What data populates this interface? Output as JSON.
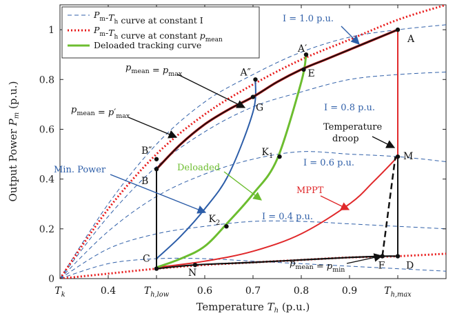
{
  "chart_data": {
    "type": "line",
    "xlabel": "Temperature T_h (p.u.)",
    "ylabel": "Output Power P_m (p.u.)",
    "xlim": [
      0.3,
      1.1
    ],
    "ylim": [
      0,
      1.1
    ],
    "xticks": [
      {
        "v": 0.3,
        "label": "T_k"
      },
      {
        "v": 0.4,
        "label": "0.4"
      },
      {
        "v": 0.5,
        "label": "T_h,low"
      },
      {
        "v": 0.6,
        "label": "0.6"
      },
      {
        "v": 0.7,
        "label": "0.7"
      },
      {
        "v": 0.8,
        "label": "0.8"
      },
      {
        "v": 0.9,
        "label": "0.9"
      },
      {
        "v": 1.0,
        "label": "T_h,max"
      }
    ],
    "yticks": [
      {
        "v": 0,
        "label": "0"
      },
      {
        "v": 0.2,
        "label": "0.2"
      },
      {
        "v": 0.4,
        "label": "0.4"
      },
      {
        "v": 0.6,
        "label": "0.6"
      },
      {
        "v": 0.8,
        "label": "0.8"
      },
      {
        "v": 1.0,
        "label": "1"
      }
    ],
    "legend": {
      "position": "top-left",
      "entries": [
        {
          "label": "P_m-T_h curve at constant I",
          "style": "blue-dashed"
        },
        {
          "label": "P_m-T_h curve at constant p_mean",
          "style": "red-dotted"
        },
        {
          "label": "Deloaded tracking curve",
          "style": "green-solid"
        }
      ]
    },
    "colors": {
      "const_current": "#2f5fa8",
      "const_pressure": "#e81818",
      "deloaded": "#6cbd2f",
      "mppt": "#e0282a",
      "min_power": "#2c5da8",
      "operating_boundary": "#111111"
    },
    "constant_current_curves": [
      {
        "label": "I = 1.0 p.u.",
        "x": [
          0.3,
          0.4,
          0.5,
          0.6,
          0.7,
          0.8,
          0.9,
          1.0,
          1.1
        ],
        "y": [
          0.0,
          0.3,
          0.54,
          0.71,
          0.82,
          0.91,
          0.97,
          1.0,
          1.02
        ]
      },
      {
        "label": "I = 0.8 p.u.",
        "x": [
          0.3,
          0.4,
          0.5,
          0.6,
          0.7,
          0.8,
          0.9,
          1.0,
          1.1
        ],
        "y": [
          0.0,
          0.25,
          0.45,
          0.59,
          0.69,
          0.75,
          0.8,
          0.82,
          0.83
        ]
      },
      {
        "label": "I = 0.6 p.u.",
        "x": [
          0.3,
          0.4,
          0.5,
          0.6,
          0.7,
          0.8,
          0.9,
          1.0,
          1.1
        ],
        "y": [
          0.0,
          0.19,
          0.33,
          0.42,
          0.48,
          0.51,
          0.5,
          0.49,
          0.47
        ]
      },
      {
        "label": "I = 0.4 p.u.",
        "x": [
          0.3,
          0.4,
          0.5,
          0.6,
          0.7,
          0.8,
          0.9,
          1.0,
          1.1
        ],
        "y": [
          0.0,
          0.12,
          0.18,
          0.21,
          0.23,
          0.23,
          0.22,
          0.21,
          0.2
        ]
      },
      {
        "label": "",
        "x": [
          0.3,
          0.4,
          0.5,
          0.6,
          0.7,
          0.8,
          0.9,
          1.0,
          1.1
        ],
        "y": [
          0.0,
          0.06,
          0.08,
          0.08,
          0.07,
          0.06,
          0.05,
          0.04,
          0.03
        ]
      }
    ],
    "constant_pressure_curves": [
      {
        "x": [
          0.3,
          0.4,
          0.5,
          0.6,
          0.7,
          0.8,
          0.9,
          1.0,
          1.1
        ],
        "y": [
          0.0,
          0.28,
          0.5,
          0.66,
          0.78,
          0.88,
          0.96,
          1.04,
          1.1
        ]
      },
      {
        "x": [
          0.3,
          0.4,
          0.5,
          0.6,
          0.7,
          0.8,
          0.9,
          1.0,
          1.1
        ],
        "y": [
          0.0,
          0.02,
          0.04,
          0.055,
          0.065,
          0.075,
          0.085,
          0.09,
          0.1
        ]
      }
    ],
    "boundary_curve": {
      "x": [
        0.5,
        0.55,
        0.6,
        0.65,
        0.7,
        0.75,
        0.8,
        0.85,
        0.9,
        0.95,
        1.0
      ],
      "y": [
        0.44,
        0.54,
        0.62,
        0.68,
        0.73,
        0.79,
        0.84,
        0.88,
        0.92,
        0.96,
        1.0
      ]
    },
    "min_pressure_line": {
      "x": [
        0.5,
        0.58,
        0.7,
        0.8,
        0.9,
        0.97,
        1.0
      ],
      "y": [
        0.04,
        0.055,
        0.065,
        0.075,
        0.085,
        0.09,
        0.09
      ]
    },
    "deloaded_curve": {
      "x": [
        0.5,
        0.55,
        0.6,
        0.65,
        0.7,
        0.75,
        0.8,
        0.81
      ],
      "y": [
        0.045,
        0.08,
        0.13,
        0.23,
        0.34,
        0.48,
        0.79,
        0.9
      ]
    },
    "mppt_curve": {
      "x": [
        0.5,
        0.6,
        0.7,
        0.8,
        0.9,
        0.95,
        1.0
      ],
      "y": [
        0.045,
        0.07,
        0.11,
        0.18,
        0.3,
        0.39,
        0.49
      ]
    },
    "min_power_curve": {
      "x": [
        0.5,
        0.55,
        0.6,
        0.65,
        0.7,
        0.705
      ],
      "y": [
        0.08,
        0.17,
        0.28,
        0.42,
        0.67,
        0.8
      ]
    },
    "temperature_droop_line": {
      "x": [
        0.968,
        0.995
      ],
      "y": [
        0.09,
        0.49
      ]
    },
    "points": [
      {
        "label": "A",
        "x": 1.0,
        "y": 1.0
      },
      {
        "label": "A′",
        "x": 0.81,
        "y": 0.9
      },
      {
        "label": "A″",
        "x": 0.705,
        "y": 0.8
      },
      {
        "label": "E",
        "x": 0.805,
        "y": 0.84
      },
      {
        "label": "G",
        "x": 0.7,
        "y": 0.73
      },
      {
        "label": "B″",
        "x": 0.5,
        "y": 0.48
      },
      {
        "label": "B",
        "x": 0.5,
        "y": 0.44
      },
      {
        "label": "K1",
        "x": 0.755,
        "y": 0.49
      },
      {
        "label": "K2",
        "x": 0.645,
        "y": 0.21
      },
      {
        "label": "M",
        "x": 1.0,
        "y": 0.49
      },
      {
        "label": "C",
        "x": 0.5,
        "y": 0.04
      },
      {
        "label": "N",
        "x": 0.58,
        "y": 0.055
      },
      {
        "label": "F",
        "x": 0.968,
        "y": 0.09
      },
      {
        "label": "D",
        "x": 1.0,
        "y": 0.09
      }
    ],
    "annotations": [
      {
        "text": "p_mean = p_max",
        "key": "pmax"
      },
      {
        "text": "p_mean = p′_max",
        "key": "pmaxp"
      },
      {
        "text": "p_mean = p_min",
        "key": "pmin"
      },
      {
        "text": "Temperature",
        "key": "droop1"
      },
      {
        "text": "droop",
        "key": "droop2"
      },
      {
        "text": "Min. Power",
        "key": "minp"
      },
      {
        "text": "Deloaded",
        "key": "deloaded"
      },
      {
        "text": "MPPT",
        "key": "mppt"
      },
      {
        "text": "I = 1.0 p.u.",
        "key": "i10"
      },
      {
        "text": "I = 0.8 p.u.",
        "key": "i08"
      },
      {
        "text": "I = 0.6 p.u.",
        "key": "i06"
      },
      {
        "text": "I = 0.4 p.u.",
        "key": "i04"
      }
    ]
  }
}
